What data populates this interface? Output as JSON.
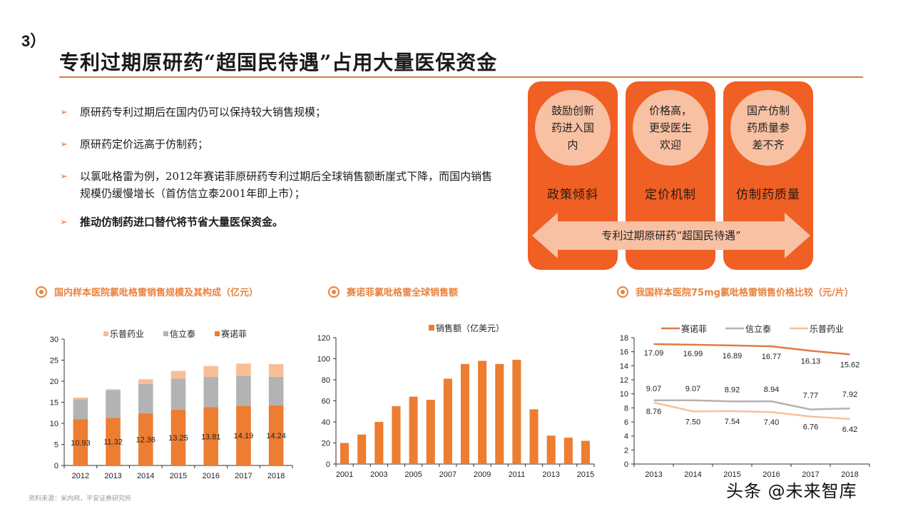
{
  "header": {
    "section_number": "3）",
    "title": "专利过期原研药“超国民待遇”占用大量医保资金"
  },
  "bullets": [
    {
      "text": "原研药专利过期后在国内仍可以保持较大销售规模；",
      "bold": false
    },
    {
      "text": "原研药定价远高于仿制药；",
      "bold": false
    },
    {
      "text": "以氯吡格雷为例，2012年赛诺菲原研药专利过期后全球销售额断崖式下降，而国内销售规模仍缓慢增长（首仿信立泰2001年即上市）；",
      "bold": false
    },
    {
      "text": "推动仿制药进口替代将节省大量医保资金。",
      "bold": true
    }
  ],
  "diagram": {
    "columns": [
      {
        "circle_text": "鼓励创新药进入国内",
        "label": "政策倾斜"
      },
      {
        "circle_text": "价格高，更受医生欢迎",
        "label": "定价机制"
      },
      {
        "circle_text": "国产仿制药质量参差不齐",
        "label": "仿制药质量"
      }
    ],
    "banner": "专利过期原研药“超国民待遇”",
    "colors": {
      "column": "#f05f23",
      "circle": "#f9c1a4",
      "banner": "#f9c1a4"
    }
  },
  "chart_data": [
    {
      "type": "bar",
      "stacked": true,
      "title": "国内样本医院氯吡格雷销售规模及其构成（亿元）",
      "categories": [
        "2012",
        "2013",
        "2014",
        "2015",
        "2016",
        "2017",
        "2018"
      ],
      "series": [
        {
          "name": "赛诺菲",
          "color": "#ed7d31",
          "values": [
            10.93,
            11.32,
            12.36,
            13.25,
            13.81,
            14.19,
            14.24
          ],
          "labels": [
            "10.93",
            "11.32",
            "12.36",
            "13.25",
            "13.81",
            "14.19",
            "14.24"
          ]
        },
        {
          "name": "信立泰",
          "color": "#b3b3b3",
          "values": [
            4.8,
            6.5,
            7.0,
            7.4,
            7.2,
            7.1,
            6.8
          ]
        },
        {
          "name": "乐普药业",
          "color": "#f8be96",
          "values": [
            0.4,
            0.3,
            1.1,
            1.8,
            2.6,
            2.9,
            3.0
          ]
        }
      ],
      "legend": [
        "乐普药业",
        "信立泰",
        "赛诺菲"
      ],
      "yticks": [
        "0",
        "5",
        "10",
        "15",
        "20",
        "25",
        "30"
      ],
      "ylim": [
        0,
        30
      ],
      "legend_position": "top"
    },
    {
      "type": "bar",
      "title": "赛诺菲氯吡格雷全球销售额",
      "categories": [
        "2001",
        "2002",
        "2003",
        "2004",
        "2005",
        "2006",
        "2007",
        "2008",
        "2009",
        "2010",
        "2011",
        "2012",
        "2013",
        "2014",
        "2015"
      ],
      "xtick_labels": [
        "2001",
        "2003",
        "2005",
        "2007",
        "2009",
        "2011",
        "2013",
        "2015"
      ],
      "series": [
        {
          "name": "销售额（亿美元）",
          "color": "#ed7d31",
          "values": [
            20,
            28,
            40,
            55,
            64,
            61,
            81,
            95,
            98,
            95,
            99,
            52,
            27,
            25,
            22
          ]
        }
      ],
      "yticks": [
        "0",
        "20",
        "40",
        "60",
        "80",
        "100",
        "120"
      ],
      "ylim": [
        0,
        120
      ],
      "legend_position": "top"
    },
    {
      "type": "line",
      "title": "我国样本医院75mg氯吡格雷销售价格比较（元/片）",
      "categories": [
        "2013",
        "2014",
        "2015",
        "2016",
        "2017",
        "2018"
      ],
      "series": [
        {
          "name": "赛诺菲",
          "color": "#e07b45",
          "values": [
            17.09,
            16.99,
            16.89,
            16.77,
            16.13,
            15.62
          ],
          "labels": [
            "17.09",
            "16.99",
            "16.89",
            "16.77",
            "16.13",
            "15.62"
          ]
        },
        {
          "name": "信立泰",
          "color": "#b3b3b3",
          "values": [
            9.07,
            9.07,
            8.92,
            8.94,
            7.77,
            7.92
          ],
          "labels": [
            "9.07",
            "9.07",
            "8.92",
            "8.94",
            "7.77",
            "7.92"
          ]
        },
        {
          "name": "乐普药业",
          "color": "#f8c09c",
          "values": [
            8.76,
            7.5,
            7.54,
            7.4,
            6.76,
            6.42
          ],
          "labels": [
            "8.76",
            "7.50",
            "7.54",
            "7.40",
            "6.76",
            "6.42"
          ]
        }
      ],
      "yticks": [
        "0",
        "2",
        "4",
        "6",
        "8",
        "10",
        "12",
        "14",
        "16",
        "18"
      ],
      "ylim": [
        0,
        18
      ],
      "legend_position": "top"
    }
  ],
  "footer": {
    "source": "资料来源：米内网，平安证券研究所",
    "watermark": "头条 @未来智库"
  }
}
